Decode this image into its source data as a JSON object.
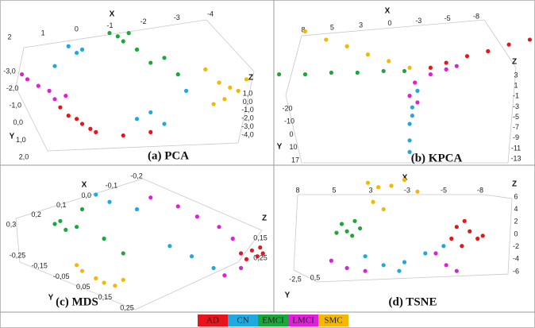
{
  "chart_data": [
    {
      "type": "scatter3d",
      "title": "(a) PCA",
      "x_label": "X",
      "y_label": "Y",
      "z_label": "Z",
      "xticks": [
        2,
        1,
        0,
        -1,
        -2,
        -3,
        -4
      ],
      "yticks": [
        {
          "value": -3,
          "label": "-3,0"
        },
        {
          "value": -2,
          "label": "-2,0"
        },
        {
          "value": -1,
          "label": "-1,0"
        },
        {
          "value": 0,
          "label": "0,0"
        },
        {
          "value": 1,
          "label": "1,0"
        },
        {
          "value": 2,
          "label": "2,0"
        }
      ],
      "zticks": [
        {
          "value": 1,
          "label": "1,0"
        },
        {
          "value": 0,
          "label": "0,0"
        },
        {
          "value": -1,
          "label": "-1,0"
        },
        {
          "value": -2,
          "label": "-2,0"
        },
        {
          "value": -3,
          "label": "-3,0"
        },
        {
          "value": -4,
          "label": "-4,0"
        }
      ],
      "series": [
        {
          "name": "AD",
          "color": "#e8141b",
          "x": [
            22,
            25,
            28,
            30,
            33,
            35,
            45,
            55
          ],
          "y": [
            65,
            70,
            72,
            75,
            78,
            80,
            82,
            80
          ]
        },
        {
          "name": "CN",
          "color": "#1fa9e1",
          "x": [
            20,
            25,
            28,
            30,
            50,
            55,
            60,
            68
          ],
          "y": [
            40,
            28,
            32,
            30,
            72,
            68,
            75,
            55
          ]
        },
        {
          "name": "EMCI",
          "color": "#1aa83b",
          "x": [
            40,
            43,
            45,
            47,
            50,
            55,
            60,
            65
          ],
          "y": [
            20,
            22,
            25,
            20,
            30,
            38,
            35,
            45
          ]
        },
        {
          "name": "LMCI",
          "color": "#e020d8",
          "x": [
            10,
            14,
            18,
            20,
            8,
            24
          ],
          "y": [
            48,
            52,
            55,
            60,
            45,
            58
          ]
        },
        {
          "name": "SMC",
          "color": "#f5b800",
          "x": [
            75,
            80,
            84,
            87,
            90,
            82,
            78
          ],
          "y": [
            42,
            50,
            53,
            55,
            48,
            60,
            63
          ]
        }
      ]
    },
    {
      "type": "scatter3d",
      "title": "(b) KPCA",
      "x_label": "X",
      "y_label": "Y",
      "z_label": "Z",
      "xticks": [
        8,
        5,
        3,
        0,
        -3,
        -5,
        -8
      ],
      "yticks": [
        -20,
        -10,
        0,
        10,
        17
      ],
      "zticks": [
        3,
        1,
        -1,
        -3,
        -5,
        -7,
        -9,
        -11,
        -13
      ],
      "series": [
        {
          "name": "AD",
          "color": "#e8141b",
          "x": [
            98,
            90,
            82,
            74,
            66,
            60
          ],
          "y": [
            24,
            27,
            31,
            34,
            38,
            41
          ]
        },
        {
          "name": "CN",
          "color": "#1fa9e1",
          "x": [
            55,
            53,
            52,
            52,
            52,
            53
          ],
          "y": [
            55,
            65,
            75,
            85,
            92,
            70
          ]
        },
        {
          "name": "EMCI",
          "color": "#1aa83b",
          "x": [
            2,
            12,
            22,
            32,
            42,
            50
          ],
          "y": [
            45,
            45,
            44,
            44,
            43,
            43
          ]
        },
        {
          "name": "LMCI",
          "color": "#e020d8",
          "x": [
            60,
            66,
            70,
            54,
            52,
            55
          ],
          "y": [
            45,
            42,
            40,
            50,
            58,
            62
          ]
        },
        {
          "name": "SMC",
          "color": "#f5b800",
          "x": [
            12,
            20,
            28,
            36,
            44,
            52
          ],
          "y": [
            19,
            24,
            28,
            33,
            37,
            41
          ]
        }
      ]
    },
    {
      "type": "scatter3d",
      "title": "(c) MDS",
      "x_label": "X",
      "y_label": "Y",
      "z_label": "Z",
      "xticks": [
        {
          "value": -0.2,
          "label": "-0,2"
        },
        {
          "value": -0.1,
          "label": "-0,1"
        },
        {
          "value": 0,
          "label": "0,0"
        },
        {
          "value": 0.1,
          "label": "0,1"
        },
        {
          "value": 0.2,
          "label": "0,2"
        },
        {
          "value": 0.3,
          "label": "0,3"
        }
      ],
      "yticks": [
        {
          "value": -0.25,
          "label": "-0,25"
        },
        {
          "value": -0.15,
          "label": "-0,15"
        },
        {
          "value": -0.05,
          "label": "-0,05"
        },
        {
          "value": 0.05,
          "label": "0,05"
        },
        {
          "value": 0.15,
          "label": "0,15"
        },
        {
          "value": 0.25,
          "label": "0,25"
        }
      ],
      "zticks": [
        {
          "value": 0.15,
          "label": "0,15"
        },
        {
          "value": 0.25,
          "label": "0,25"
        }
      ],
      "series": [
        {
          "name": "AD",
          "color": "#e8141b",
          "x": [
            92,
            94,
            96,
            90,
            95,
            88
          ],
          "y": [
            58,
            62,
            60,
            64,
            56,
            60
          ]
        },
        {
          "name": "CN",
          "color": "#1fa9e1",
          "x": [
            35,
            40,
            50,
            62,
            70,
            78
          ],
          "y": [
            20,
            25,
            30,
            55,
            62,
            70
          ]
        },
        {
          "name": "EMCI",
          "color": "#1aa83b",
          "x": [
            20,
            24,
            28,
            22,
            38,
            45,
            30
          ],
          "y": [
            40,
            44,
            42,
            38,
            50,
            60,
            30
          ]
        },
        {
          "name": "LMCI",
          "color": "#e020d8",
          "x": [
            55,
            65,
            72,
            80,
            85,
            88,
            82
          ],
          "y": [
            22,
            28,
            35,
            42,
            50,
            70,
            75
          ]
        },
        {
          "name": "SMC",
          "color": "#f5b800",
          "x": [
            30,
            35,
            38,
            42,
            28,
            45
          ],
          "y": [
            72,
            77,
            80,
            82,
            68,
            78
          ]
        }
      ]
    },
    {
      "type": "scatter3d",
      "title": "(d) TSNE",
      "x_label": "X",
      "y_label": "Y",
      "z_label": "Z",
      "xticks": [
        8,
        5,
        3,
        -3,
        -5,
        -8
      ],
      "yticks": [
        {
          "value": -2.5,
          "label": "-2,5"
        },
        {
          "value": 0.5,
          "label": "0,5"
        }
      ],
      "zticks": [
        6,
        4,
        2,
        0,
        -2,
        -4,
        -6
      ],
      "series": [
        {
          "name": "AD",
          "color": "#e8141b",
          "x": [
            70,
            75,
            78,
            72,
            68,
            73,
            80
          ],
          "y": [
            42,
            45,
            50,
            55,
            50,
            38,
            48
          ]
        },
        {
          "name": "CN",
          "color": "#1fa9e1",
          "x": [
            35,
            42,
            50,
            58,
            65,
            48
          ],
          "y": [
            62,
            68,
            66,
            60,
            55,
            72
          ]
        },
        {
          "name": "EMCI",
          "color": "#1aa83b",
          "x": [
            26,
            28,
            30,
            33,
            24,
            31
          ],
          "y": [
            40,
            45,
            48,
            43,
            46,
            38
          ]
        },
        {
          "name": "LMCI",
          "color": "#e020d8",
          "x": [
            22,
            28,
            35,
            62,
            66,
            70
          ],
          "y": [
            65,
            70,
            72,
            60,
            68,
            72
          ]
        },
        {
          "name": "SMC",
          "color": "#f5b800",
          "x": [
            36,
            40,
            45,
            50,
            55,
            38,
            42
          ],
          "y": [
            12,
            15,
            14,
            10,
            18,
            25,
            30
          ]
        }
      ]
    }
  ]
}
